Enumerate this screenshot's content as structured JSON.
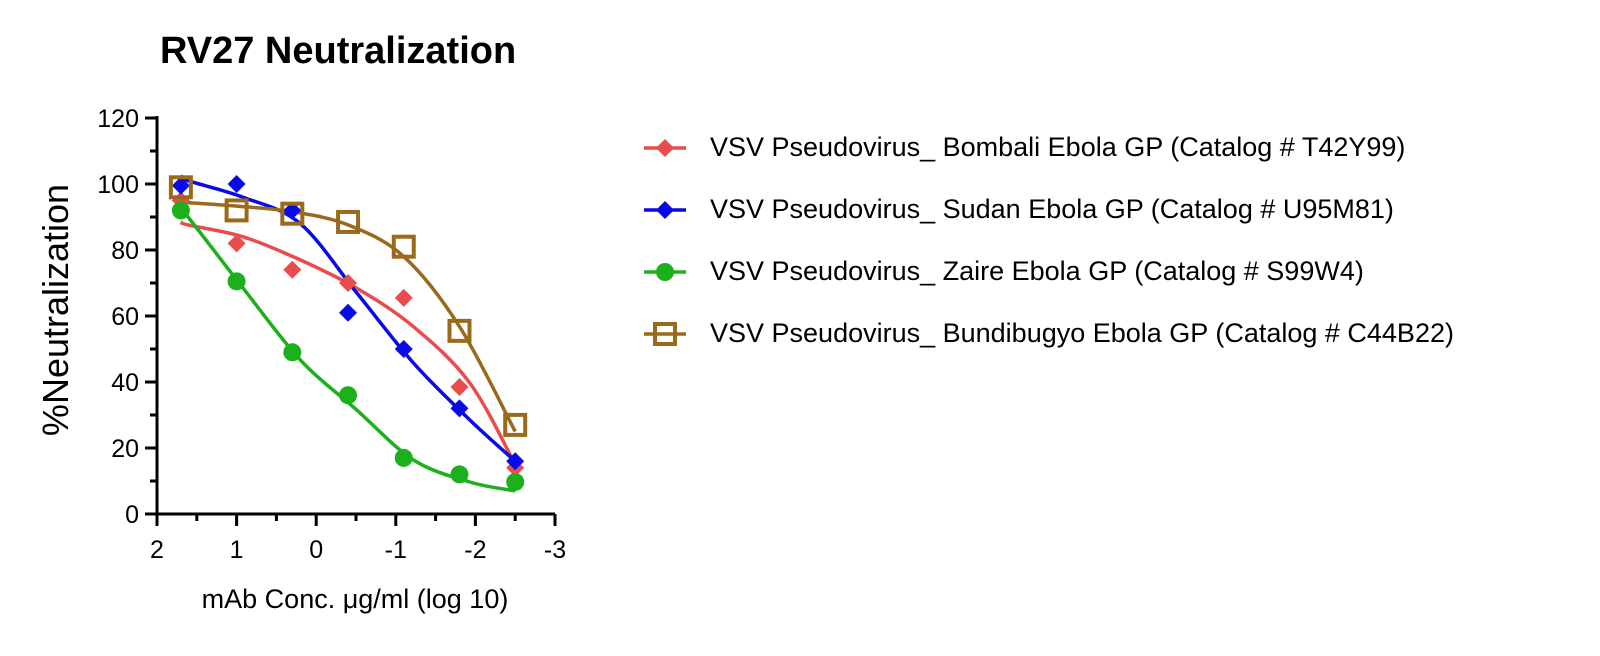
{
  "chart_data": {
    "type": "line",
    "title": "RV27 Neutralization",
    "xlabel": "mAb Conc. μg/ml (log 10)",
    "ylabel": "%Neutralization",
    "xlim": [
      2,
      -3
    ],
    "ylim": [
      0,
      120
    ],
    "xticks": [
      "2",
      "1",
      "0",
      "-1",
      "-2",
      "-3"
    ],
    "xtick_values": [
      2,
      1,
      0,
      -1,
      -2,
      -3
    ],
    "yticks": [
      "0",
      "20",
      "40",
      "60",
      "80",
      "100",
      "120"
    ],
    "ytick_values": [
      0,
      20,
      40,
      60,
      80,
      100,
      120
    ],
    "legend_position": "right",
    "x": [
      1.7,
      1.0,
      0.3,
      -0.4,
      -1.1,
      -1.8,
      -2.5
    ],
    "series": [
      {
        "name": "VSV Pseudovirus_ Bombali Ebola GP (Catalog # T42Y99)",
        "color": "#ea4b4b",
        "marker": "diamond",
        "values": [
          95,
          82,
          74,
          70,
          65.5,
          38.5,
          14
        ],
        "fit_x": [
          1.7,
          1.61,
          0.92,
          0.2,
          -0.51,
          -1.22,
          -1.93,
          -2.5
        ],
        "fit_y": [
          88.5,
          87.6,
          84,
          77,
          68.4,
          56.8,
          39.7,
          15
        ]
      },
      {
        "name": "VSV Pseudovirus_ Sudan Ebola GP (Catalog # U95M81)",
        "color": "#0a0ae6",
        "marker": "diamond",
        "values": [
          99.5,
          100,
          92,
          61,
          50,
          32,
          16
        ],
        "fit_x": [
          1.7,
          1.61,
          0.92,
          0.2,
          -0.51,
          -1.22,
          -1.93,
          -2.5
        ],
        "fit_y": [
          102.5,
          101,
          96,
          88,
          67,
          45.8,
          28.5,
          16
        ]
      },
      {
        "name": "VSV Pseudovirus_ Zaire Ebola GP (Catalog # S99W4)",
        "color": "#1cb01c",
        "marker": "circle",
        "values": [
          92,
          70.5,
          49,
          36,
          17,
          12,
          9.7
        ],
        "fit_x": [
          1.7,
          1.61,
          0.92,
          0.2,
          -0.51,
          -1.22,
          -1.93,
          -2.5
        ],
        "fit_y": [
          92,
          90,
          68.5,
          46.7,
          31.5,
          16.4,
          9.7,
          7
        ]
      },
      {
        "name": "VSV Pseudovirus_ Bundibugyo Ebola GP (Catalog # C44B22)",
        "color": "#9a6a1c",
        "marker": "open-square",
        "values": [
          99,
          92,
          91,
          88.5,
          81,
          55.5,
          27
        ],
        "fit_x": [
          1.7,
          1.0,
          0.3,
          -0.4,
          -1.1,
          -1.8,
          -2.5
        ],
        "fit_y": [
          94.5,
          93.3,
          91.6,
          87.6,
          78,
          56.8,
          25
        ]
      }
    ]
  }
}
